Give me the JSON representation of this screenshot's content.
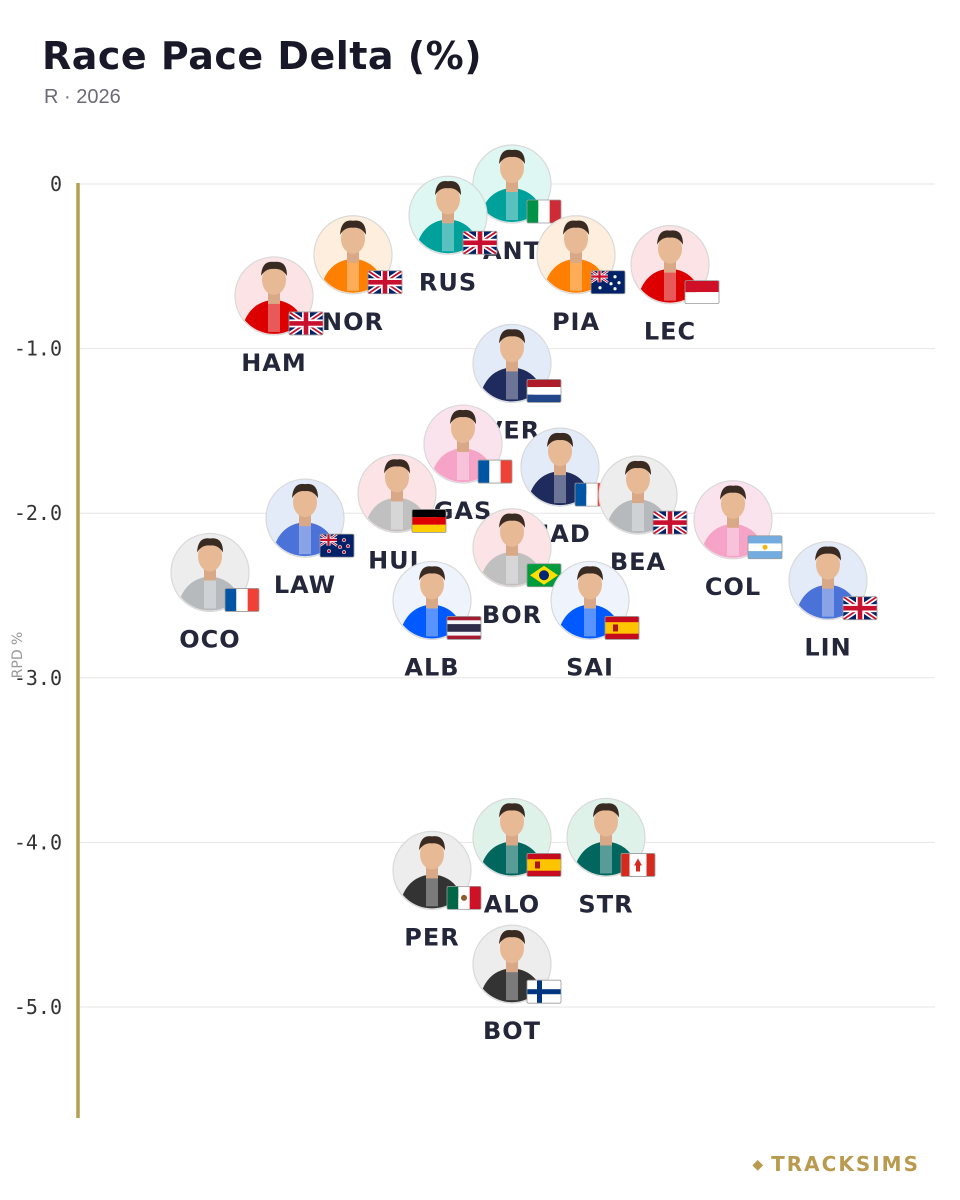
{
  "header": {
    "title": "Race Pace Delta (%)",
    "subtitle": "R · 2026"
  },
  "brand": {
    "mark": "◆",
    "name": "TRACKSIMS"
  },
  "colors": {
    "axis_line": "#b4a050",
    "grid": "#e6e6e6",
    "label_text": "#24263a",
    "tick_text": "#333333",
    "brand": "#b99a4e"
  },
  "chart_data": {
    "type": "scatter",
    "title": "Race Pace Delta (%)",
    "ylabel": "RPD %",
    "ylim": [
      -5.65,
      0.1
    ],
    "yticks": [
      0,
      -1.0,
      -2.0,
      -3.0,
      -4.0,
      -5.0
    ],
    "ytick_labels": [
      "0",
      "-1.0",
      "-2.0",
      "-3.0",
      "-4.0",
      "-5.0"
    ],
    "grid": true,
    "x_axis_visible": false,
    "points": [
      {
        "label": "ANT",
        "y": 0.0,
        "team_color": "#00a19b",
        "bg": "#dff7f2",
        "flag": "italy-flag"
      },
      {
        "label": "RUS",
        "y": -0.19,
        "team_color": "#00a19b",
        "bg": "#dff7f2",
        "flag": "uk-flag"
      },
      {
        "label": "PIA",
        "y": -0.43,
        "team_color": "#ff8000",
        "bg": "#fdeedd",
        "flag": "australia-flag"
      },
      {
        "label": "NOR",
        "y": -0.43,
        "team_color": "#ff8000",
        "bg": "#fdeedd",
        "flag": "uk-flag"
      },
      {
        "label": "LEC",
        "y": -0.49,
        "team_color": "#dc0000",
        "bg": "#fbe3e6",
        "flag": "monaco-flag"
      },
      {
        "label": "HAM",
        "y": -0.68,
        "team_color": "#dc0000",
        "bg": "#fbe3e6",
        "flag": "uk-flag"
      },
      {
        "label": "VER",
        "y": -1.09,
        "team_color": "#1e2b5c",
        "bg": "#e4ebf8",
        "flag": "netherlands-flag"
      },
      {
        "label": "GAS",
        "y": -1.58,
        "team_color": "#f5a3c7",
        "bg": "#fbe3ee",
        "flag": "france-flag"
      },
      {
        "label": "HAD",
        "y": -1.72,
        "team_color": "#1e2b5c",
        "bg": "#e4ebf8",
        "flag": "france-flag"
      },
      {
        "label": "BEA",
        "y": -1.89,
        "team_color": "#b6babd",
        "bg": "#ededed",
        "flag": "uk-flag"
      },
      {
        "label": "HUL",
        "y": -1.88,
        "team_color": "#c0c0c0",
        "bg": "#fbe3e6",
        "flag": "germany-flag"
      },
      {
        "label": "LAW",
        "y": -2.03,
        "team_color": "#4a72d9",
        "bg": "#e4ebf8",
        "flag": "new-zealand-flag"
      },
      {
        "label": "COL",
        "y": -2.04,
        "team_color": "#f5a3c7",
        "bg": "#fbe3ee",
        "flag": "argentina-flag"
      },
      {
        "label": "BOR",
        "y": -2.21,
        "team_color": "#c0c0c0",
        "bg": "#fbe3e6",
        "flag": "brazil-flag"
      },
      {
        "label": "OCO",
        "y": -2.36,
        "team_color": "#b6babd",
        "bg": "#ededed",
        "flag": "france-flag"
      },
      {
        "label": "LIN",
        "y": -2.41,
        "team_color": "#4a72d9",
        "bg": "#e4ebf8",
        "flag": "uk-flag"
      },
      {
        "label": "SAI",
        "y": -2.53,
        "team_color": "#005aff",
        "bg": "#eef3fc",
        "flag": "spain-flag"
      },
      {
        "label": "ALB",
        "y": -2.53,
        "team_color": "#005aff",
        "bg": "#eef3fc",
        "flag": "thailand-flag"
      },
      {
        "label": "ALO",
        "y": -3.97,
        "team_color": "#00665e",
        "bg": "#dff2ea",
        "flag": "spain-flag"
      },
      {
        "label": "STR",
        "y": -3.97,
        "team_color": "#00665e",
        "bg": "#dff2ea",
        "flag": "canada-flag"
      },
      {
        "label": "PER",
        "y": -4.17,
        "team_color": "#333333",
        "bg": "#ededed",
        "flag": "mexico-flag"
      },
      {
        "label": "BOT",
        "y": -4.74,
        "team_color": "#333333",
        "bg": "#ededed",
        "flag": "finland-flag"
      }
    ]
  }
}
